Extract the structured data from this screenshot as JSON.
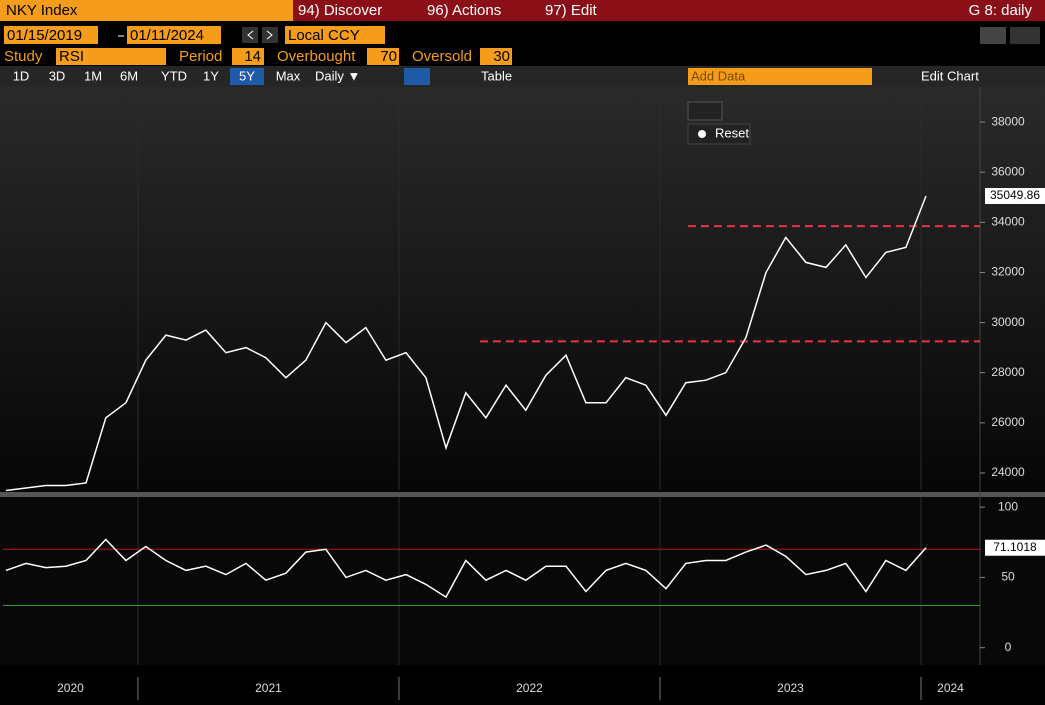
{
  "header": {
    "security": "NKY Index",
    "menus": [
      "94) Discover",
      "96) Actions",
      "97) Edit"
    ],
    "page": "G 8: daily"
  },
  "range": {
    "start": "01/15/2019",
    "end": "01/11/2024",
    "currency": "Local CCY"
  },
  "study": {
    "label": "Study",
    "name": "RSI",
    "period_label": "Period",
    "period": 14,
    "overbought_label": "Overbought",
    "oversold_label": "Oversold"
  },
  "toolbar": {
    "periods": [
      "1D",
      "3D",
      "1M",
      "6M",
      "YTD",
      "1Y",
      "5Y",
      "Max"
    ],
    "frequency": "Daily ▼",
    "table": "Table",
    "add_data": "Add Data",
    "edit_chart": "Edit Chart",
    "reset": "Reset"
  },
  "chart_data": [
    {
      "type": "line",
      "x": [
        2020.494,
        2020.571,
        2020.647,
        2020.724,
        2020.801,
        2020.877,
        2020.954,
        2021.03,
        2021.107,
        2021.184,
        2021.26,
        2021.337,
        2021.414,
        2021.49,
        2021.567,
        2021.643,
        2021.72,
        2021.797,
        2021.873,
        2021.95,
        2022.027,
        2022.103,
        2022.18,
        2022.256,
        2022.333,
        2022.41,
        2022.486,
        2022.563,
        2022.64,
        2022.716,
        2022.793,
        2022.869,
        2022.946,
        2023.023,
        2023.099,
        2023.176,
        2023.252,
        2023.329,
        2023.406,
        2023.482,
        2023.559,
        2023.636,
        2023.712,
        2023.789,
        2023.865,
        2023.942,
        2024.019
      ],
      "series": [
        {
          "color": "#ffffff",
          "values": [
            23300,
            23400,
            23500,
            23500,
            23600,
            26200,
            26800,
            28500,
            29500,
            29300,
            29700,
            28800,
            29000,
            28600,
            27800,
            28500,
            30000,
            29200,
            29800,
            28500,
            28800,
            27800,
            25000,
            27200,
            26200,
            27500,
            26500,
            27900,
            28700,
            26800,
            26800,
            27800,
            27500,
            26300,
            27600,
            27700,
            28000,
            29400,
            32000,
            33400,
            32400,
            32200,
            33100,
            31800,
            32800,
            33000,
            35049.86
          ]
        }
      ],
      "hlines": [
        {
          "value": 33850,
          "x0": 2023.107,
          "color": "#e8334a"
        },
        {
          "value": 29250,
          "x0": 2022.31,
          "color": "#e8334a"
        }
      ],
      "xlim": [
        2020.483,
        2024.226
      ],
      "xticks": [
        2021,
        2022,
        2023,
        2024
      ],
      "ylim": [
        23320,
        39400
      ],
      "yticks": [
        24000,
        26000,
        28000,
        30000,
        32000,
        34000,
        36000,
        38000
      ]
    },
    {
      "type": "line",
      "x": [
        2020.494,
        2020.571,
        2020.647,
        2020.724,
        2020.801,
        2020.877,
        2020.954,
        2021.03,
        2021.107,
        2021.184,
        2021.26,
        2021.337,
        2021.414,
        2021.49,
        2021.567,
        2021.643,
        2021.72,
        2021.797,
        2021.873,
        2021.95,
        2022.027,
        2022.103,
        2022.18,
        2022.256,
        2022.333,
        2022.41,
        2022.486,
        2022.563,
        2022.64,
        2022.716,
        2022.793,
        2022.869,
        2022.946,
        2023.023,
        2023.099,
        2023.176,
        2023.252,
        2023.329,
        2023.406,
        2023.482,
        2023.559,
        2023.636,
        2023.712,
        2023.789,
        2023.865,
        2023.942,
        2024.019
      ],
      "series": [
        {
          "color": "#ffffff",
          "values": [
            55,
            60,
            57,
            58,
            62,
            77,
            62,
            72,
            62,
            55,
            58,
            52,
            60,
            48,
            53,
            68,
            70,
            50,
            55,
            48,
            52,
            45,
            36,
            62,
            48,
            55,
            48,
            58,
            58,
            40,
            55,
            60,
            55,
            42,
            60,
            62,
            62,
            68,
            73,
            65,
            52,
            55,
            60,
            40,
            62,
            55,
            71.1018
          ]
        }
      ],
      "overbought": 70,
      "overbought_color": "#c0141b",
      "oversold": 30,
      "oversold_color": "#2f9d2f",
      "xlim": [
        2020.483,
        2024.226
      ],
      "xticks": [
        2020,
        2021,
        2022,
        2023,
        2024
      ],
      "ylim": [
        -12.3,
        107.2
      ],
      "yticks": [
        0,
        50,
        100
      ]
    }
  ]
}
